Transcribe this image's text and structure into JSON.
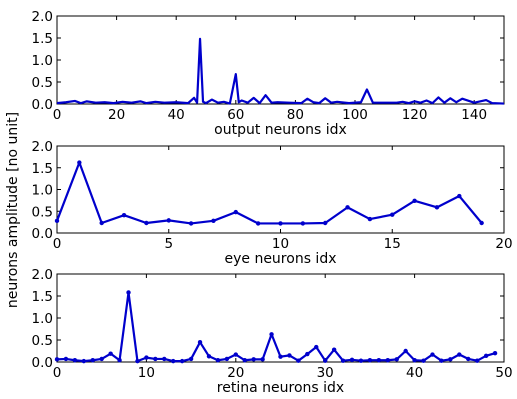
{
  "figure": {
    "ylabel": "neurons amplitude [no unit]"
  },
  "chart_data": [
    {
      "type": "line",
      "xlabel": "output neurons idx",
      "xlim": [
        0,
        150
      ],
      "ylim": [
        0,
        2.0
      ],
      "xticks": [
        0,
        20,
        40,
        60,
        80,
        100,
        120,
        140
      ],
      "yticks": [
        0.0,
        0.5,
        1.0,
        1.5,
        2.0
      ],
      "color": "#0000cc",
      "markers": false,
      "series": [
        {
          "x": [
            0,
            3,
            6,
            8,
            10,
            13,
            16,
            19,
            22,
            25,
            28,
            30,
            33,
            36,
            40,
            44,
            46,
            47,
            48,
            49,
            50,
            52,
            54,
            56,
            58,
            60,
            61,
            62,
            64,
            66,
            68,
            70,
            72,
            74,
            78,
            82,
            84,
            86,
            88,
            90,
            92,
            94,
            98,
            102,
            104,
            106,
            110,
            114,
            116,
            118,
            120,
            122,
            124,
            126,
            128,
            130,
            132,
            134,
            136,
            140,
            144,
            146,
            150
          ],
          "y": [
            0.02,
            0.04,
            0.07,
            0.02,
            0.06,
            0.03,
            0.04,
            0.02,
            0.05,
            0.03,
            0.06,
            0.02,
            0.05,
            0.03,
            0.04,
            0.02,
            0.14,
            0.03,
            1.48,
            0.05,
            0.02,
            0.1,
            0.03,
            0.05,
            0.01,
            0.68,
            0.04,
            0.08,
            0.03,
            0.14,
            0.02,
            0.2,
            0.03,
            0.04,
            0.03,
            0.02,
            0.12,
            0.04,
            0.02,
            0.13,
            0.03,
            0.05,
            0.02,
            0.04,
            0.33,
            0.03,
            0.03,
            0.03,
            0.05,
            0.02,
            0.06,
            0.03,
            0.08,
            0.02,
            0.15,
            0.03,
            0.13,
            0.04,
            0.12,
            0.03,
            0.09,
            0.02,
            0.01
          ]
        }
      ]
    },
    {
      "type": "line",
      "xlabel": "eye neurons idx",
      "xlim": [
        0,
        20
      ],
      "ylim": [
        0,
        2.0
      ],
      "xticks": [
        0,
        5,
        10,
        15,
        20
      ],
      "yticks": [
        0.0,
        0.5,
        1.0,
        1.5,
        2.0
      ],
      "color": "#0000cc",
      "markers": true,
      "series": [
        {
          "x": [
            0,
            1,
            2,
            3,
            4,
            5,
            6,
            7,
            8,
            9,
            10,
            11,
            12,
            13,
            14,
            15,
            16,
            17,
            18,
            19
          ],
          "y": [
            0.28,
            1.62,
            0.23,
            0.41,
            0.23,
            0.29,
            0.22,
            0.28,
            0.48,
            0.22,
            0.22,
            0.22,
            0.23,
            0.59,
            0.32,
            0.42,
            0.74,
            0.59,
            0.85,
            0.23
          ]
        }
      ]
    },
    {
      "type": "line",
      "xlabel": "retina neurons idx",
      "xlim": [
        0,
        50
      ],
      "ylim": [
        0,
        2.0
      ],
      "xticks": [
        0,
        10,
        20,
        30,
        40,
        50
      ],
      "yticks": [
        0.0,
        0.5,
        1.0,
        1.5,
        2.0
      ],
      "color": "#0000cc",
      "markers": true,
      "series": [
        {
          "x": [
            0,
            1,
            2,
            3,
            4,
            5,
            6,
            7,
            8,
            9,
            10,
            11,
            12,
            13,
            14,
            15,
            16,
            17,
            18,
            19,
            20,
            21,
            22,
            23,
            24,
            25,
            26,
            27,
            28,
            29,
            30,
            31,
            32,
            33,
            34,
            35,
            36,
            37,
            38,
            39,
            40,
            41,
            42,
            43,
            44,
            45,
            46,
            47,
            48,
            49
          ],
          "y": [
            0.06,
            0.07,
            0.04,
            0.02,
            0.04,
            0.07,
            0.19,
            0.04,
            1.58,
            0.02,
            0.1,
            0.07,
            0.07,
            0.02,
            0.02,
            0.07,
            0.45,
            0.13,
            0.04,
            0.07,
            0.17,
            0.04,
            0.06,
            0.06,
            0.63,
            0.12,
            0.15,
            0.03,
            0.18,
            0.34,
            0.03,
            0.28,
            0.03,
            0.05,
            0.03,
            0.04,
            0.04,
            0.04,
            0.06,
            0.25,
            0.04,
            0.03,
            0.17,
            0.03,
            0.06,
            0.17,
            0.07,
            0.03,
            0.14,
            0.2
          ]
        }
      ]
    }
  ]
}
